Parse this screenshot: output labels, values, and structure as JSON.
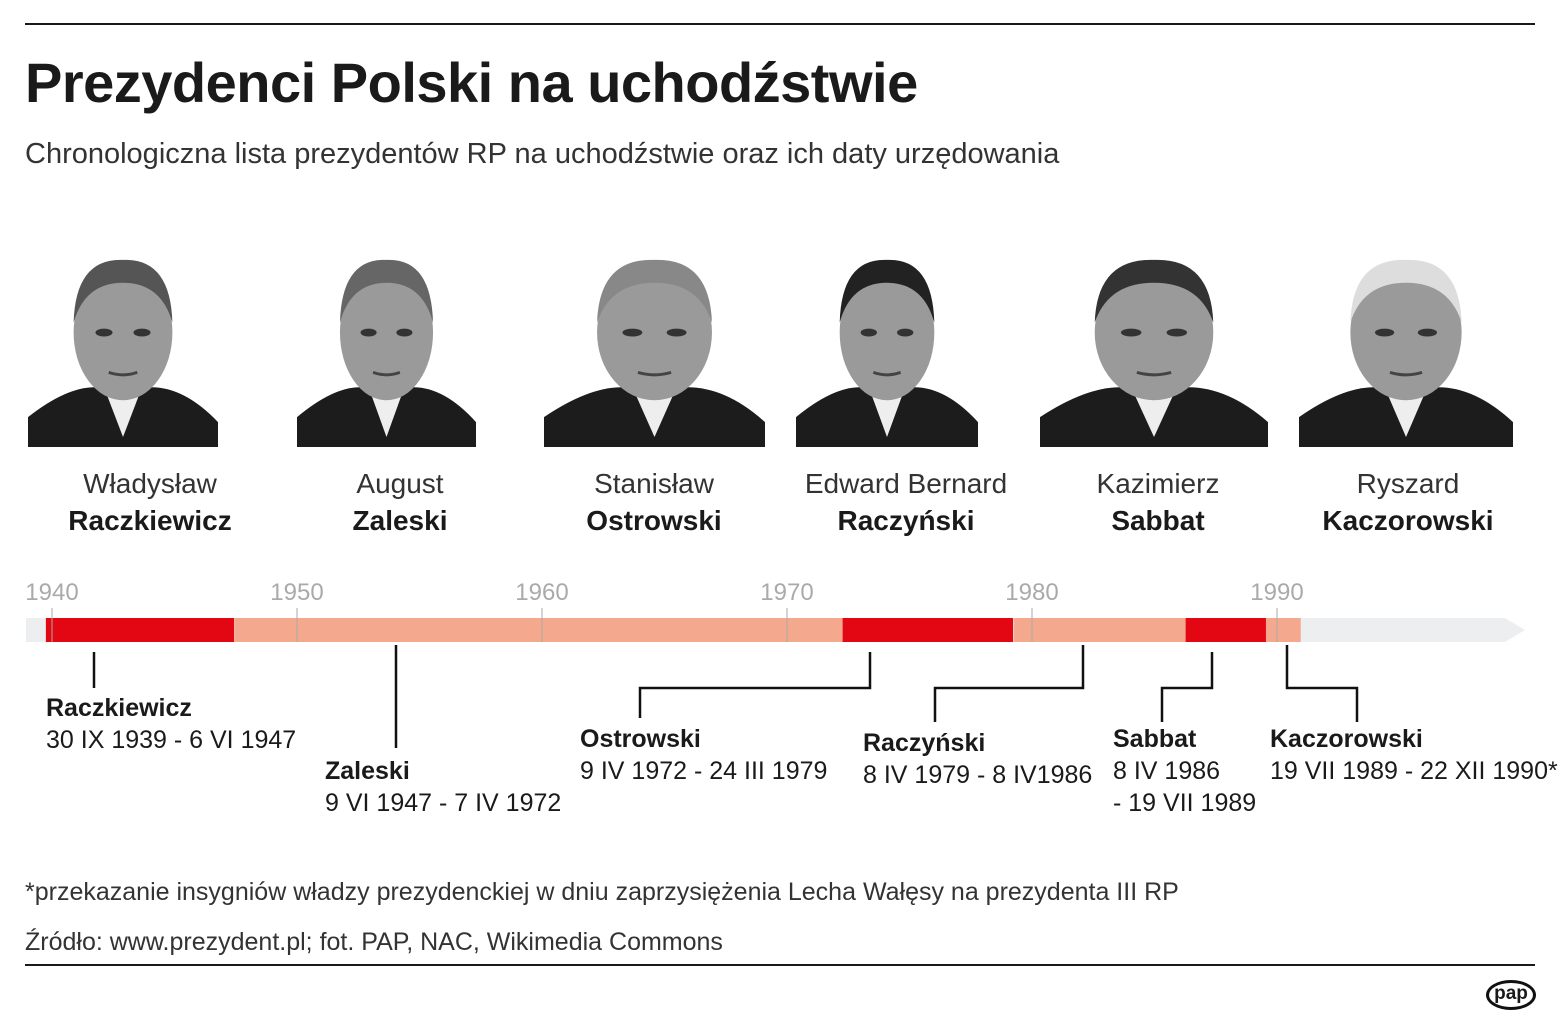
{
  "title": "Prezydenci Polski na uchodźstwie",
  "subtitle": "Chronologiczna lista prezydentów RP na uchodźstwie oraz ich daty urzędowania",
  "presidents": [
    {
      "first": "Władysław",
      "last": "Raczkiewicz",
      "label": "Raczkiewicz",
      "dates": "30 IX 1939 - 6 VI 1947",
      "dates2": ""
    },
    {
      "first": "August",
      "last": "Zaleski",
      "label": "Zaleski",
      "dates": "9 VI 1947 - 7 IV 1972",
      "dates2": ""
    },
    {
      "first": "Stanisław",
      "last": "Ostrowski",
      "label": "Ostrowski",
      "dates": "9 IV 1972 - 24 III 1979",
      "dates2": ""
    },
    {
      "first": "Edward Bernard",
      "last": "Raczyński",
      "label": "Raczyński",
      "dates": "8 IV 1979 - 8 IV1986",
      "dates2": ""
    },
    {
      "first": "Kazimierz",
      "last": "Sabbat",
      "label": "Sabbat",
      "dates": "8 IV 1986",
      "dates2": "- 19 VII 1989"
    },
    {
      "first": "Ryszard",
      "last": "Kaczorowski",
      "label": "Kaczorowski",
      "dates": "19 VII 1989 - 22 XII 1990*",
      "dates2": ""
    }
  ],
  "chart_data": {
    "type": "timeline",
    "ticks": [
      "1940",
      "1950",
      "1960",
      "1970",
      "1980",
      "1990"
    ],
    "terms": [
      {
        "start": 1939.75,
        "end": 1947.43,
        "color": "#e30613"
      },
      {
        "start": 1947.44,
        "end": 1972.27,
        "color": "#f4a98e"
      },
      {
        "start": 1972.27,
        "end": 1979.23,
        "color": "#e30613"
      },
      {
        "start": 1979.27,
        "end": 1986.27,
        "color": "#f4a98e"
      },
      {
        "start": 1986.27,
        "end": 1989.55,
        "color": "#e30613"
      },
      {
        "start": 1989.55,
        "end": 1990.97,
        "color": "#f4a98e"
      }
    ]
  },
  "footnote": "*przekazanie insygniów władzy prezydenckiej w dniu zaprzysiężenia Lecha Wałęsy na prezydenta III RP",
  "source": "Źródło: www.prezydent.pl; fot. PAP, NAC, Wikimedia Commons",
  "logo": "pap"
}
